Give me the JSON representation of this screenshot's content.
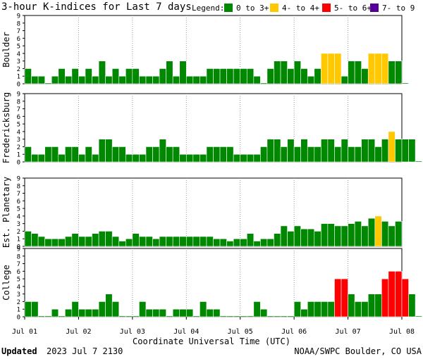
{
  "title": "3-hour K-indices for Last 7 days",
  "legend": {
    "label": "Legend:",
    "items": [
      {
        "label": "0 to 3+",
        "color": "#008800"
      },
      {
        "label": "4- to 4+",
        "color": "#ffc800"
      },
      {
        "label": "5- to 6+",
        "color": "#ff0000"
      },
      {
        "label": "7- to 9",
        "color": "#550099"
      }
    ]
  },
  "footer": {
    "updated_label": "Updated",
    "updated_value": "2023 Jul  7 2130",
    "source": "NOAA/SWPC Boulder, CO USA"
  },
  "chart_data": {
    "type": "bar",
    "xlabel": "Coordinate Universal Time (UTC)",
    "x_tick_labels": [
      "Jul 01",
      "Jul 02",
      "Jul 03",
      "Jul 04",
      "Jul 05",
      "Jul 06",
      "Jul 07",
      "Jul 08"
    ],
    "ylim": [
      0,
      9
    ],
    "y_ticks": [
      0,
      1,
      2,
      3,
      4,
      5,
      6,
      7,
      8,
      9
    ],
    "bins_per_day": 8,
    "panels": [
      {
        "name": "Boulder",
        "values": [
          2,
          1,
          1,
          0,
          1,
          2,
          1,
          2,
          1,
          2,
          1,
          3,
          1,
          2,
          1,
          2,
          2,
          1,
          1,
          1,
          2,
          3,
          1,
          3,
          1,
          1,
          1,
          2,
          2,
          2,
          2,
          2,
          2,
          2,
          1,
          0,
          2,
          3,
          3,
          2,
          3,
          2,
          1,
          2,
          4,
          4,
          4,
          1,
          3,
          3,
          2,
          4,
          4,
          4,
          3,
          3,
          0
        ]
      },
      {
        "name": "Fredericksburg",
        "values": [
          2,
          1,
          1,
          2,
          2,
          1,
          2,
          2,
          1,
          2,
          1,
          3,
          3,
          2,
          2,
          1,
          1,
          1,
          2,
          2,
          3,
          2,
          2,
          1,
          1,
          1,
          1,
          2,
          2,
          2,
          2,
          1,
          1,
          1,
          1,
          2,
          3,
          3,
          2,
          3,
          2,
          3,
          2,
          2,
          3,
          3,
          2,
          3,
          2,
          2,
          3,
          3,
          2,
          3,
          4,
          3,
          3,
          3,
          0
        ]
      },
      {
        "name": "Est. Planetary",
        "values": [
          2,
          1.7,
          1.3,
          1,
          1,
          1,
          1.3,
          1.7,
          1.3,
          1.3,
          1.7,
          2,
          2,
          1.3,
          0.7,
          1,
          1.7,
          1.3,
          1.3,
          1,
          1.3,
          1.3,
          1.3,
          1.3,
          1.3,
          1.3,
          1.3,
          1.3,
          1,
          1,
          0.7,
          1,
          1,
          1.7,
          0.7,
          1,
          1,
          1.7,
          2.7,
          2,
          2.7,
          2.3,
          2.3,
          2,
          3,
          3,
          2.7,
          2.7,
          3,
          3.3,
          2.7,
          3.7,
          4,
          3.3,
          2.7,
          3.3
        ]
      },
      {
        "name": "College",
        "values": [
          2,
          2,
          0,
          0,
          1,
          0,
          1,
          2,
          1,
          1,
          1,
          2,
          3,
          2,
          0,
          0,
          0,
          2,
          1,
          1,
          1,
          0,
          1,
          1,
          1,
          0,
          2,
          1,
          1,
          0,
          0,
          0,
          0,
          0,
          2,
          1,
          0,
          0,
          0,
          0,
          2,
          1,
          2,
          2,
          2,
          2,
          5,
          5,
          3,
          2,
          2,
          3,
          3,
          5,
          6,
          6,
          5,
          3,
          0
        ]
      }
    ]
  }
}
